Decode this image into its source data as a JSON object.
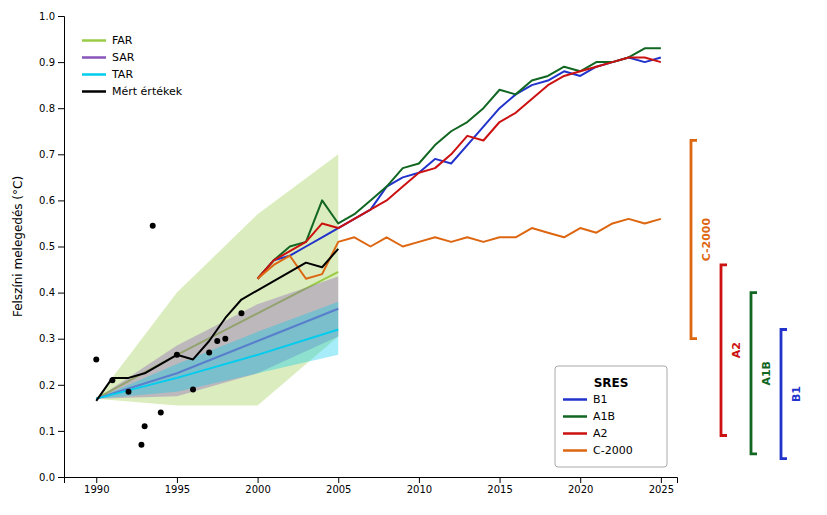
{
  "chart_data": {
    "type": "line",
    "y_label": "Felszíni melegedés (°C)",
    "xlim": [
      1988,
      2026
    ],
    "ylim": [
      0,
      1.0
    ],
    "xticks": [
      1990,
      1995,
      2000,
      2005,
      2010,
      2015,
      2020,
      2025
    ],
    "yticks": [
      {
        "value": 0,
        "label": "0.0"
      },
      0.1,
      0.2,
      0.3,
      0.4,
      0.5,
      0.6,
      0.7,
      0.8,
      0.9,
      {
        "value": 1.0,
        "label": "1.0"
      }
    ],
    "grid": false,
    "legend_titles": [
      {
        "legend": "lower right",
        "text": "SRES"
      }
    ],
    "series": [
      {
        "name": "FAR",
        "type": "band",
        "color": "#99cc44",
        "legend": "upper left",
        "x": [
          1990,
          1995,
          2000,
          2005
        ],
        "values": [
          0.17,
          0.265,
          0.355,
          0.445
        ],
        "upper": [
          0.17,
          0.4,
          0.57,
          0.7
        ],
        "lower": [
          0.17,
          0.155,
          0.155,
          0.305
        ]
      },
      {
        "name": "SAR",
        "type": "band",
        "color": "#8855bb",
        "legend": "upper left",
        "x": [
          1990,
          1995,
          2000,
          2005
        ],
        "values": [
          0.17,
          0.225,
          0.295,
          0.365
        ],
        "upper": [
          0.17,
          0.285,
          0.375,
          0.435
        ],
        "lower": [
          0.17,
          0.175,
          0.225,
          0.305
        ]
      },
      {
        "name": "TAR",
        "type": "band",
        "color": "#00ccee",
        "legend": "upper left",
        "x": [
          1990,
          1995,
          2000,
          2005
        ],
        "values": [
          0.17,
          0.215,
          0.265,
          0.32
        ],
        "upper": [
          0.17,
          0.245,
          0.315,
          0.38
        ],
        "lower": [
          0.17,
          0.185,
          0.225,
          0.265
        ]
      },
      {
        "name": "B1",
        "type": "line",
        "color": "#2233cc",
        "legend": "lower right",
        "x": [
          2000,
          2001,
          2002,
          2003,
          2004,
          2005,
          2006,
          2007,
          2008,
          2009,
          2010,
          2011,
          2012,
          2013,
          2014,
          2015,
          2016,
          2017,
          2018,
          2019,
          2020,
          2021,
          2022,
          2023,
          2024,
          2025
        ],
        "values": [
          0.43,
          0.47,
          0.48,
          0.5,
          0.52,
          0.54,
          0.56,
          0.58,
          0.63,
          0.65,
          0.66,
          0.69,
          0.68,
          0.72,
          0.76,
          0.8,
          0.83,
          0.85,
          0.86,
          0.88,
          0.87,
          0.89,
          0.9,
          0.91,
          0.9,
          0.91
        ]
      },
      {
        "name": "A1B",
        "type": "line",
        "color": "#116622",
        "legend": "lower right",
        "x": [
          2000,
          2001,
          2002,
          2003,
          2004,
          2005,
          2006,
          2007,
          2008,
          2009,
          2010,
          2011,
          2012,
          2013,
          2014,
          2015,
          2016,
          2017,
          2018,
          2019,
          2020,
          2021,
          2022,
          2023,
          2024,
          2025
        ],
        "values": [
          0.43,
          0.47,
          0.5,
          0.51,
          0.6,
          0.55,
          0.57,
          0.6,
          0.63,
          0.67,
          0.68,
          0.72,
          0.75,
          0.77,
          0.8,
          0.84,
          0.83,
          0.86,
          0.87,
          0.89,
          0.88,
          0.9,
          0.9,
          0.91,
          0.93,
          0.93
        ]
      },
      {
        "name": "A2",
        "type": "line",
        "color": "#cc1111",
        "legend": "lower right",
        "x": [
          2000,
          2001,
          2002,
          2003,
          2004,
          2005,
          2006,
          2007,
          2008,
          2009,
          2010,
          2011,
          2012,
          2013,
          2014,
          2015,
          2016,
          2017,
          2018,
          2019,
          2020,
          2021,
          2022,
          2023,
          2024,
          2025
        ],
        "values": [
          0.43,
          0.47,
          0.49,
          0.51,
          0.55,
          0.54,
          0.56,
          0.58,
          0.6,
          0.63,
          0.66,
          0.67,
          0.7,
          0.74,
          0.73,
          0.77,
          0.79,
          0.82,
          0.85,
          0.87,
          0.88,
          0.89,
          0.9,
          0.91,
          0.91,
          0.9
        ]
      },
      {
        "name": "C-2000",
        "type": "line",
        "color": "#dd6611",
        "legend": "lower right",
        "x": [
          2000,
          2001,
          2002,
          2003,
          2004,
          2005,
          2006,
          2007,
          2008,
          2009,
          2010,
          2011,
          2012,
          2013,
          2014,
          2015,
          2016,
          2017,
          2018,
          2019,
          2020,
          2021,
          2022,
          2023,
          2024,
          2025
        ],
        "values": [
          0.43,
          0.46,
          0.48,
          0.43,
          0.44,
          0.51,
          0.52,
          0.5,
          0.52,
          0.5,
          0.51,
          0.52,
          0.51,
          0.52,
          0.51,
          0.52,
          0.52,
          0.54,
          0.53,
          0.52,
          0.54,
          0.53,
          0.55,
          0.56,
          0.55,
          0.56
        ]
      },
      {
        "name": "Mért értékek",
        "type": "line",
        "color": "#000000",
        "legend": "upper left",
        "x": [
          1990,
          1991,
          1992,
          1993,
          1994,
          1995,
          1996,
          1997,
          1998,
          1999,
          2000,
          2001,
          2002,
          2003,
          2004,
          2005
        ],
        "values": [
          0.165,
          0.215,
          0.215,
          0.225,
          0.245,
          0.265,
          0.255,
          0.295,
          0.345,
          0.385,
          0.405,
          0.425,
          0.445,
          0.465,
          0.455,
          0.495
        ]
      },
      {
        "type": "scatter",
        "color": "#000000",
        "marker": "circle",
        "x": [
          1990,
          1991,
          1992,
          1992.8,
          1993,
          1994,
          1995,
          1996,
          1997,
          1998,
          1999,
          1993.5,
          1997.5
        ],
        "values": [
          0.255,
          0.21,
          0.185,
          0.07,
          0.11,
          0.14,
          0.265,
          0.19,
          0.27,
          0.3,
          0.355,
          0.545,
          0.295
        ]
      }
    ],
    "brackets": [
      {
        "text": "B1",
        "color": "#2233cc",
        "range": [
          0.04,
          0.32
        ]
      },
      {
        "text": "A1B",
        "color": "#116622",
        "range": [
          0.05,
          0.4
        ]
      },
      {
        "text": "A2",
        "color": "#cc1111",
        "range": [
          0.09,
          0.46
        ]
      },
      {
        "text": "C-2000",
        "color": "#dd6611",
        "range": [
          0.3,
          0.73
        ]
      }
    ]
  }
}
